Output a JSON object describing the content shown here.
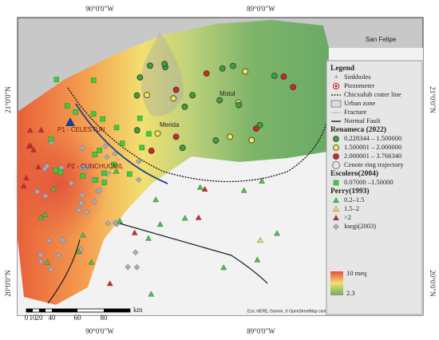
{
  "coords": {
    "top": [
      "90°0'0\"W",
      "89°0'0\"W"
    ],
    "bottom": [
      "90°0'0\"W",
      "89°0'0\"W"
    ],
    "left": [
      "21°0'0\"N",
      "20°0'0\"N"
    ],
    "right": [
      "21°0'0\"N",
      "20°0'0\"N"
    ]
  },
  "places": {
    "san_felipe": "San Felipe",
    "motul": "Motul",
    "merida": "Merida",
    "p1": "P1 - CELESTUN",
    "p2": "P2 - CUNCHUCMIL"
  },
  "legend": {
    "title": "Legend",
    "items": [
      "Sinkholes",
      "Piezometer",
      "Chicxulub crater line",
      "Urban zone",
      "Fracture",
      "Normal Fault"
    ],
    "renameca": {
      "title": "Renameca (2022)",
      "items": [
        "0.228344 – 1.500000",
        "1.500001 – 2.000000",
        "2.000001 – 3.766340"
      ],
      "ring": "Cenote ring trajectory"
    },
    "escolero": {
      "title": "Escolero(2004)",
      "items": [
        "0.07000 –1.50000"
      ]
    },
    "perry": {
      "title": "Perry(1993)",
      "items": [
        "0.2–1.5",
        "1.5–2",
        ">2"
      ]
    },
    "inegi": "Inegi(2003)",
    "ramp": {
      "high": "10 meq",
      "low": "2.3"
    }
  },
  "scale": {
    "labels": [
      "0",
      "10",
      "20",
      "40",
      "60",
      "80"
    ],
    "unit": "km"
  },
  "attribution": "Esri, HERE, Garmin, © OpenStreetMap contributors, and the GIS user community"
}
